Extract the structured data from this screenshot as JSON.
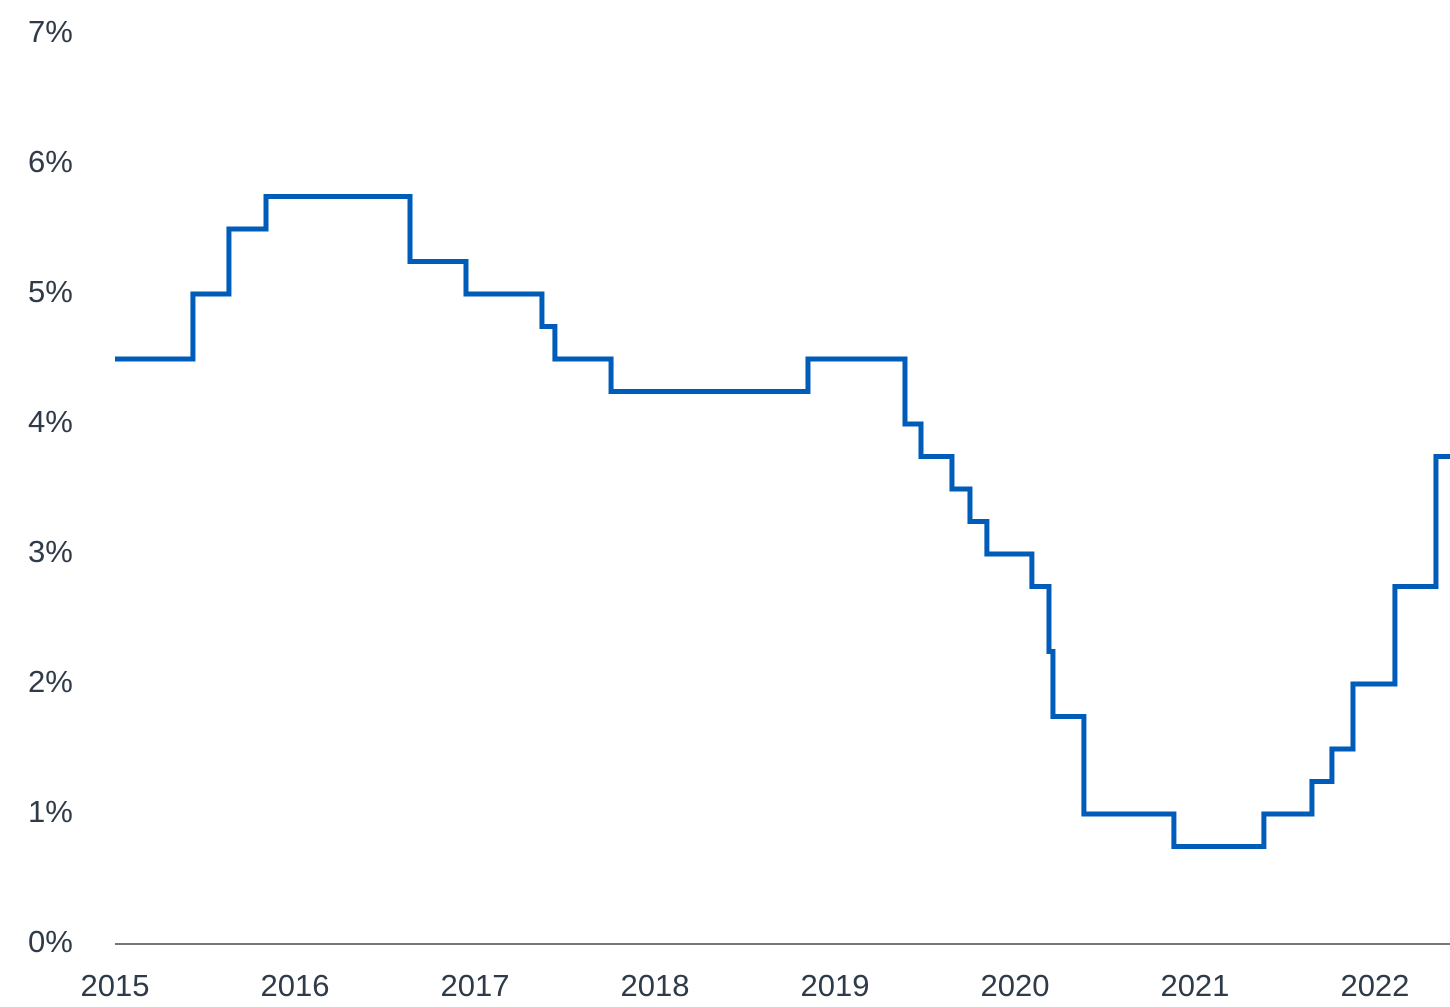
{
  "chart_data": {
    "type": "line",
    "step": "post",
    "color": "#005cb9",
    "x": [
      2015.0,
      2015.433,
      2015.633,
      2015.839,
      2016.639,
      2016.95,
      2017.372,
      2017.444,
      2017.756,
      2018.85,
      2019.389,
      2019.478,
      2019.65,
      2019.75,
      2019.844,
      2020.094,
      2020.189,
      2020.211,
      2020.383,
      2020.883,
      2021.383,
      2021.65,
      2021.761,
      2021.878,
      2022.111,
      2022.339,
      2022.417
    ],
    "values": [
      4.5,
      5.0,
      5.5,
      5.75,
      5.25,
      5.0,
      4.75,
      4.5,
      4.25,
      4.5,
      4.0,
      3.75,
      3.5,
      3.25,
      3.0,
      2.75,
      2.25,
      1.75,
      1.0,
      0.75,
      1.0,
      1.25,
      1.5,
      2.0,
      2.75,
      3.75,
      3.75
    ],
    "xlim": [
      2015,
      2022.417
    ],
    "xticks": [
      2015,
      2016,
      2017,
      2018,
      2019,
      2020,
      2021,
      2022
    ],
    "ylim": [
      0,
      7
    ],
    "yticks": [
      {
        "value": 0,
        "label": "0%"
      },
      {
        "value": 1,
        "label": "1%"
      },
      {
        "value": 2,
        "label": "2%"
      },
      {
        "value": 3,
        "label": "3%"
      },
      {
        "value": 4,
        "label": "4%"
      },
      {
        "value": 5,
        "label": "5%"
      },
      {
        "value": 6,
        "label": "6%"
      },
      {
        "value": 7,
        "label": "7%"
      }
    ],
    "grid": false
  }
}
